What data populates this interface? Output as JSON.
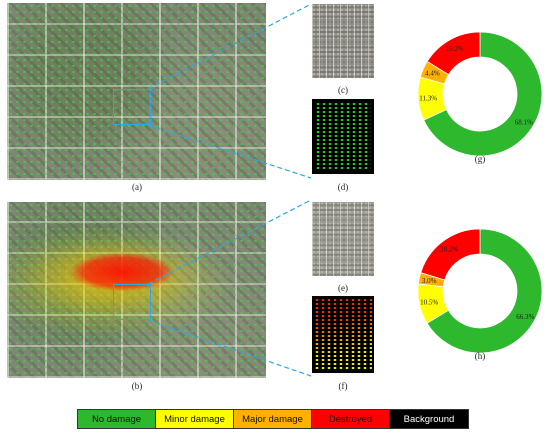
{
  "captions": {
    "a": "(a)",
    "b": "(b)",
    "c": "(c)",
    "d": "(d)",
    "e": "(e)",
    "f": "(f)",
    "g": "(g)",
    "h": "(h)"
  },
  "colors": {
    "no_damage": "#2db82d",
    "minor_damage": "#ffff00",
    "major_damage": "#ffb000",
    "destroyed": "#ff0000",
    "background": "#000000",
    "zoom_line": "#2fa8e0"
  },
  "legend": [
    {
      "label": "No damage",
      "color": "#2db82d",
      "text_color": "#111111"
    },
    {
      "label": "Minor damage",
      "color": "#ffff00",
      "text_color": "#111111"
    },
    {
      "label": "Major damage",
      "color": "#ffb000",
      "text_color": "#111111"
    },
    {
      "label": "Destroyed",
      "color": "#ff0000",
      "text_color": "#111111"
    },
    {
      "label": "Background",
      "color": "#000000",
      "text_color": "#ffffff"
    }
  ],
  "chart_data": [
    {
      "type": "pie",
      "id": "g",
      "donut": true,
      "slices": [
        {
          "label": "No damage",
          "value": 68.1,
          "text": "68.1%",
          "color": "#2db82d"
        },
        {
          "label": "Minor damage",
          "value": 11.3,
          "text": "11.3%",
          "color": "#ffff00"
        },
        {
          "label": "Major damage",
          "value": 4.4,
          "text": "4.4%",
          "color": "#ffb000"
        },
        {
          "label": "Destroyed",
          "value": 16.2,
          "text": "16.2%",
          "color": "#ff0000"
        }
      ]
    },
    {
      "type": "pie",
      "id": "h",
      "donut": true,
      "slices": [
        {
          "label": "No damage",
          "value": 66.3,
          "text": "66.3%",
          "color": "#2db82d"
        },
        {
          "label": "Minor damage",
          "value": 10.5,
          "text": "10.5%",
          "color": "#ffff00"
        },
        {
          "label": "Major damage",
          "value": 3.0,
          "text": "3.0%",
          "color": "#ffb000"
        },
        {
          "label": "Destroyed",
          "value": 20.2,
          "text": "20.2%",
          "color": "#ff0000"
        }
      ]
    }
  ]
}
